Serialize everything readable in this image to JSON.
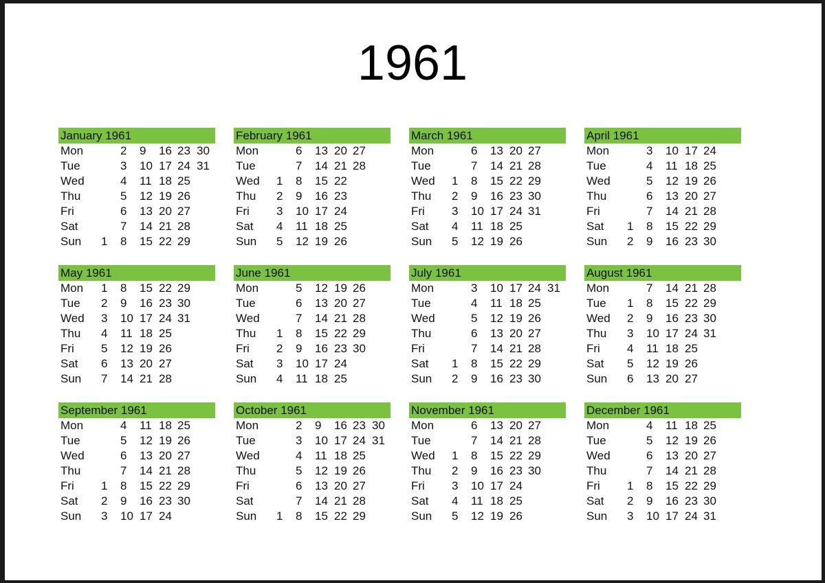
{
  "title": "1961",
  "header_color": "#7cc242",
  "weekdays": [
    "Mon",
    "Tue",
    "Wed",
    "Thu",
    "Fri",
    "Sat",
    "Sun"
  ],
  "months": [
    {
      "name": "January 1961",
      "rows": [
        [
          "",
          "2",
          "9",
          "16",
          "23",
          "30"
        ],
        [
          "",
          "3",
          "10",
          "17",
          "24",
          "31"
        ],
        [
          "",
          "4",
          "11",
          "18",
          "25"
        ],
        [
          "",
          "5",
          "12",
          "19",
          "26"
        ],
        [
          "",
          "6",
          "13",
          "20",
          "27"
        ],
        [
          "",
          "7",
          "14",
          "21",
          "28"
        ],
        [
          "1",
          "8",
          "15",
          "22",
          "29"
        ]
      ]
    },
    {
      "name": "February 1961",
      "rows": [
        [
          "",
          "6",
          "13",
          "20",
          "27"
        ],
        [
          "",
          "7",
          "14",
          "21",
          "28"
        ],
        [
          "1",
          "8",
          "15",
          "22"
        ],
        [
          "2",
          "9",
          "16",
          "23"
        ],
        [
          "3",
          "10",
          "17",
          "24"
        ],
        [
          "4",
          "11",
          "18",
          "25"
        ],
        [
          "5",
          "12",
          "19",
          "26"
        ]
      ]
    },
    {
      "name": "March 1961",
      "rows": [
        [
          "",
          "6",
          "13",
          "20",
          "27"
        ],
        [
          "",
          "7",
          "14",
          "21",
          "28"
        ],
        [
          "1",
          "8",
          "15",
          "22",
          "29"
        ],
        [
          "2",
          "9",
          "16",
          "23",
          "30"
        ],
        [
          "3",
          "10",
          "17",
          "24",
          "31"
        ],
        [
          "4",
          "11",
          "18",
          "25"
        ],
        [
          "5",
          "12",
          "19",
          "26"
        ]
      ]
    },
    {
      "name": "April 1961",
      "rows": [
        [
          "",
          "3",
          "10",
          "17",
          "24"
        ],
        [
          "",
          "4",
          "11",
          "18",
          "25"
        ],
        [
          "",
          "5",
          "12",
          "19",
          "26"
        ],
        [
          "",
          "6",
          "13",
          "20",
          "27"
        ],
        [
          "",
          "7",
          "14",
          "21",
          "28"
        ],
        [
          "1",
          "8",
          "15",
          "22",
          "29"
        ],
        [
          "2",
          "9",
          "16",
          "23",
          "30"
        ]
      ]
    },
    {
      "name": "May 1961",
      "rows": [
        [
          "1",
          "8",
          "15",
          "22",
          "29"
        ],
        [
          "2",
          "9",
          "16",
          "23",
          "30"
        ],
        [
          "3",
          "10",
          "17",
          "24",
          "31"
        ],
        [
          "4",
          "11",
          "18",
          "25"
        ],
        [
          "5",
          "12",
          "19",
          "26"
        ],
        [
          "6",
          "13",
          "20",
          "27"
        ],
        [
          "7",
          "14",
          "21",
          "28"
        ]
      ]
    },
    {
      "name": "June 1961",
      "rows": [
        [
          "",
          "5",
          "12",
          "19",
          "26"
        ],
        [
          "",
          "6",
          "13",
          "20",
          "27"
        ],
        [
          "",
          "7",
          "14",
          "21",
          "28"
        ],
        [
          "1",
          "8",
          "15",
          "22",
          "29"
        ],
        [
          "2",
          "9",
          "16",
          "23",
          "30"
        ],
        [
          "3",
          "10",
          "17",
          "24"
        ],
        [
          "4",
          "11",
          "18",
          "25"
        ]
      ]
    },
    {
      "name": "July 1961",
      "rows": [
        [
          "",
          "3",
          "10",
          "17",
          "24",
          "31"
        ],
        [
          "",
          "4",
          "11",
          "18",
          "25"
        ],
        [
          "",
          "5",
          "12",
          "19",
          "26"
        ],
        [
          "",
          "6",
          "13",
          "20",
          "27"
        ],
        [
          "",
          "7",
          "14",
          "21",
          "28"
        ],
        [
          "1",
          "8",
          "15",
          "22",
          "29"
        ],
        [
          "2",
          "9",
          "16",
          "23",
          "30"
        ]
      ]
    },
    {
      "name": "August 1961",
      "rows": [
        [
          "",
          "7",
          "14",
          "21",
          "28"
        ],
        [
          "1",
          "8",
          "15",
          "22",
          "29"
        ],
        [
          "2",
          "9",
          "16",
          "23",
          "30"
        ],
        [
          "3",
          "10",
          "17",
          "24",
          "31"
        ],
        [
          "4",
          "11",
          "18",
          "25"
        ],
        [
          "5",
          "12",
          "19",
          "26"
        ],
        [
          "6",
          "13",
          "20",
          "27"
        ]
      ]
    },
    {
      "name": "September 1961",
      "rows": [
        [
          "",
          "4",
          "11",
          "18",
          "25"
        ],
        [
          "",
          "5",
          "12",
          "19",
          "26"
        ],
        [
          "",
          "6",
          "13",
          "20",
          "27"
        ],
        [
          "",
          "7",
          "14",
          "21",
          "28"
        ],
        [
          "1",
          "8",
          "15",
          "22",
          "29"
        ],
        [
          "2",
          "9",
          "16",
          "23",
          "30"
        ],
        [
          "3",
          "10",
          "17",
          "24"
        ]
      ]
    },
    {
      "name": "October 1961",
      "rows": [
        [
          "",
          "2",
          "9",
          "16",
          "23",
          "30"
        ],
        [
          "",
          "3",
          "10",
          "17",
          "24",
          "31"
        ],
        [
          "",
          "4",
          "11",
          "18",
          "25"
        ],
        [
          "",
          "5",
          "12",
          "19",
          "26"
        ],
        [
          "",
          "6",
          "13",
          "20",
          "27"
        ],
        [
          "",
          "7",
          "14",
          "21",
          "28"
        ],
        [
          "1",
          "8",
          "15",
          "22",
          "29"
        ]
      ]
    },
    {
      "name": "November 1961",
      "rows": [
        [
          "",
          "6",
          "13",
          "20",
          "27"
        ],
        [
          "",
          "7",
          "14",
          "21",
          "28"
        ],
        [
          "1",
          "8",
          "15",
          "22",
          "29"
        ],
        [
          "2",
          "9",
          "16",
          "23",
          "30"
        ],
        [
          "3",
          "10",
          "17",
          "24"
        ],
        [
          "4",
          "11",
          "18",
          "25"
        ],
        [
          "5",
          "12",
          "19",
          "26"
        ]
      ]
    },
    {
      "name": "December 1961",
      "rows": [
        [
          "",
          "4",
          "11",
          "18",
          "25"
        ],
        [
          "",
          "5",
          "12",
          "19",
          "26"
        ],
        [
          "",
          "6",
          "13",
          "20",
          "27"
        ],
        [
          "",
          "7",
          "14",
          "21",
          "28"
        ],
        [
          "1",
          "8",
          "15",
          "22",
          "29"
        ],
        [
          "2",
          "9",
          "16",
          "23",
          "30"
        ],
        [
          "3",
          "10",
          "17",
          "24",
          "31"
        ]
      ]
    }
  ]
}
